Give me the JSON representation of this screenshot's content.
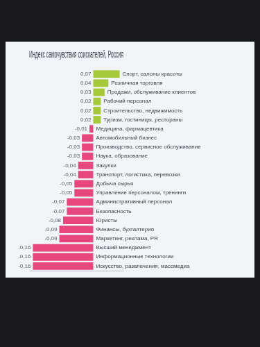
{
  "chart_data": {
    "type": "bar",
    "title": "Индекс самочувствия соискателей, Россия",
    "orientation": "horizontal",
    "categories": [
      "Спорт, салоны красоты",
      "Розничная торговля",
      "Продажи, обслуживание клиентов",
      "Рабочий персонал",
      "Строительство, недвижимость",
      "Туризм, гостиницы, рестораны",
      "Медицина, фармацевтика",
      "Автомобильный бизнес",
      "Производство, сервисное обслуживание",
      "Наука, образование",
      "Закупки",
      "Транспорт, логистика, перевозки",
      "Добыча сырья",
      "Управление персоналом, тренинги",
      "Административный персонал",
      "Безопасность",
      "Юристы",
      "Финансы, бухгалтерия",
      "Маркетинг, реклама, PR",
      "Высший менеджмент",
      "Информационные технологии",
      "Искусство, развлечения, массмедиа"
    ],
    "values": [
      0.07,
      0.04,
      0.03,
      0.02,
      0.02,
      0.02,
      -0.01,
      -0.03,
      -0.03,
      -0.03,
      -0.04,
      -0.04,
      -0.05,
      -0.05,
      -0.07,
      -0.07,
      -0.08,
      -0.09,
      -0.09,
      -0.16,
      -0.16,
      -0.16
    ],
    "value_labels": [
      "0,07",
      "0,04",
      "0,03",
      "0,02",
      "0,02",
      "0,02",
      "-0,01",
      "-0,03",
      "-0,03",
      "-0,03",
      "-0,04",
      "-0,04",
      "-0,05",
      "-0,05",
      "-0,07",
      "-0,07",
      "-0,08",
      "-0,09",
      "-0,09",
      "-0,16",
      "-0,16",
      "-0,16"
    ],
    "colors": [
      "#a6c93a",
      "#a6c93a",
      "#a6c93a",
      "#a6c93a",
      "#a6c93a",
      "#a6c93a",
      "#e8477e",
      "#e8477e",
      "#e8477e",
      "#e8477e",
      "#e8477e",
      "#e8477e",
      "#e8477e",
      "#e8477e",
      "#e8477e",
      "#e8477e",
      "#e8477e",
      "#e8477e",
      "#e8477e",
      "#e8477e",
      "#e8477e",
      "#e8477e"
    ],
    "xlim": [
      -0.17,
      0.08
    ],
    "grid": false,
    "data_labels": true,
    "tick_labels": "y"
  }
}
